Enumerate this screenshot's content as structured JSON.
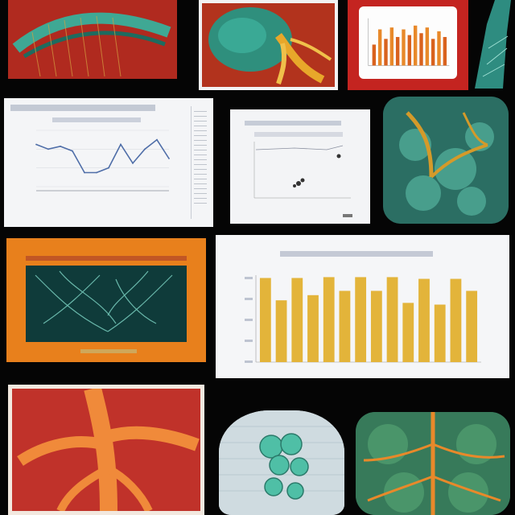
{
  "colors": {
    "background": "#050505",
    "red_panel": "#c0201c",
    "teal": "#3fb3a0",
    "orange": "#e8891f",
    "gold": "#e3b43a",
    "paper": "#f4f5f7"
  },
  "charts": {
    "line_chart": {
      "type": "line",
      "values": [
        185,
        180,
        183,
        178,
        155,
        155,
        160,
        185,
        165,
        180,
        190,
        170
      ]
    },
    "small_bar_chart": {
      "type": "bar",
      "values": [
        22,
        38,
        28,
        40,
        30,
        38,
        32,
        42,
        34,
        40,
        28,
        36,
        30
      ]
    },
    "bar_chart": {
      "type": "bar",
      "values": [
        98,
        72,
        98,
        78,
        99,
        83,
        99,
        83,
        99,
        69,
        97,
        67,
        97,
        83
      ]
    }
  },
  "chart_data": [
    {
      "type": "line",
      "values": [
        185,
        180,
        183,
        178,
        155,
        155,
        160,
        185,
        165,
        180,
        190,
        170
      ]
    },
    {
      "type": "bar",
      "values": [
        22,
        38,
        28,
        40,
        30,
        38,
        32,
        42,
        34,
        40,
        28,
        36,
        30
      ]
    },
    {
      "type": "bar",
      "values": [
        98,
        72,
        98,
        78,
        99,
        83,
        99,
        83,
        99,
        69,
        97,
        67,
        97,
        83
      ]
    }
  ]
}
